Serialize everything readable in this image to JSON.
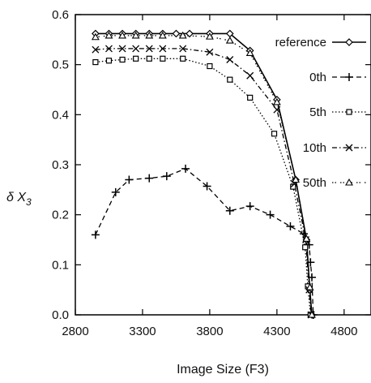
{
  "chart_data": {
    "type": "line",
    "title": "",
    "xlabel": "Image Size (F3)",
    "ylabel_main": "δ X",
    "ylabel_sub": "3",
    "xlim": [
      2800,
      5000
    ],
    "ylim": [
      0.0,
      0.6
    ],
    "xticks": [
      2800,
      3300,
      3800,
      4300,
      4800
    ],
    "xtick_labels": [
      "2800",
      "3300",
      "3800",
      "4300",
      "4800"
    ],
    "yticks": [
      0.0,
      0.1,
      0.2,
      0.3,
      0.4,
      0.5,
      0.6
    ],
    "ytick_labels": [
      "0.0",
      "0.1",
      "0.2",
      "0.3",
      "0.4",
      "0.5",
      "0.6"
    ],
    "grid": false,
    "legend_position": "top-right",
    "series": [
      {
        "name": "reference",
        "marker": "diamond",
        "dash": "solid",
        "points": [
          [
            2950,
            0.562
          ],
          [
            3050,
            0.562
          ],
          [
            3150,
            0.562
          ],
          [
            3250,
            0.562
          ],
          [
            3350,
            0.562
          ],
          [
            3450,
            0.562
          ],
          [
            3550,
            0.562
          ],
          [
            3650,
            0.562
          ],
          [
            3800,
            0.562
          ],
          [
            3950,
            0.562
          ],
          [
            4100,
            0.528
          ],
          [
            4300,
            0.43
          ],
          [
            4440,
            0.27
          ],
          [
            4520,
            0.15
          ],
          [
            4545,
            0.05
          ],
          [
            4560,
            0.0
          ]
        ]
      },
      {
        "name": "0th",
        "marker": "plus",
        "dash": "dashed",
        "points": [
          [
            2950,
            0.16
          ],
          [
            3100,
            0.245
          ],
          [
            3200,
            0.27
          ],
          [
            3350,
            0.273
          ],
          [
            3480,
            0.277
          ],
          [
            3620,
            0.292
          ],
          [
            3780,
            0.257
          ],
          [
            3950,
            0.208
          ],
          [
            4100,
            0.217
          ],
          [
            4250,
            0.2
          ],
          [
            4400,
            0.177
          ],
          [
            4500,
            0.162
          ],
          [
            4540,
            0.14
          ],
          [
            4550,
            0.105
          ],
          [
            4560,
            0.075
          ],
          [
            4570,
            0.0
          ]
        ]
      },
      {
        "name": "5th",
        "marker": "square",
        "dash": "dotted",
        "points": [
          [
            2950,
            0.505
          ],
          [
            3050,
            0.508
          ],
          [
            3150,
            0.51
          ],
          [
            3250,
            0.512
          ],
          [
            3350,
            0.512
          ],
          [
            3450,
            0.512
          ],
          [
            3600,
            0.512
          ],
          [
            3800,
            0.497
          ],
          [
            3950,
            0.47
          ],
          [
            4100,
            0.434
          ],
          [
            4280,
            0.362
          ],
          [
            4420,
            0.256
          ],
          [
            4510,
            0.135
          ],
          [
            4530,
            0.057
          ],
          [
            4550,
            0.0
          ]
        ]
      },
      {
        "name": "10th",
        "marker": "cross",
        "dash": "dashdot",
        "points": [
          [
            2950,
            0.53
          ],
          [
            3050,
            0.532
          ],
          [
            3150,
            0.532
          ],
          [
            3250,
            0.532
          ],
          [
            3350,
            0.532
          ],
          [
            3450,
            0.532
          ],
          [
            3600,
            0.532
          ],
          [
            3800,
            0.525
          ],
          [
            3950,
            0.51
          ],
          [
            4100,
            0.478
          ],
          [
            4300,
            0.41
          ],
          [
            4430,
            0.262
          ],
          [
            4515,
            0.15
          ],
          [
            4540,
            0.05
          ],
          [
            4555,
            0.0
          ]
        ]
      },
      {
        "name": "50th",
        "marker": "triangle",
        "dash": "dotdot",
        "points": [
          [
            2950,
            0.555
          ],
          [
            3050,
            0.558
          ],
          [
            3150,
            0.558
          ],
          [
            3250,
            0.558
          ],
          [
            3350,
            0.558
          ],
          [
            3450,
            0.558
          ],
          [
            3600,
            0.558
          ],
          [
            3800,
            0.556
          ],
          [
            3950,
            0.548
          ],
          [
            4100,
            0.523
          ],
          [
            4300,
            0.425
          ],
          [
            4440,
            0.27
          ],
          [
            4520,
            0.152
          ],
          [
            4545,
            0.055
          ],
          [
            4560,
            0.0
          ]
        ]
      }
    ]
  }
}
